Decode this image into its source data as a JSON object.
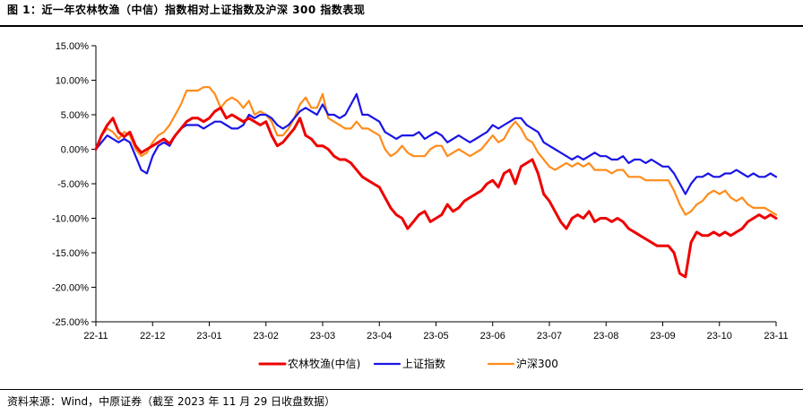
{
  "figure_title": "图 1：近一年农林牧渔（中信）指数相对上证指数及沪深 300 指数表现",
  "source_note": "资料来源：Wind，中原证券（截至 2023 年 11 月 29 日收盘数据）",
  "colors": {
    "agri": "#ee0000",
    "sse": "#1a14e6",
    "csi300": "#ff8c1a",
    "axis": "#000000"
  },
  "chart_data": {
    "type": "line",
    "title": "",
    "xlabel": "",
    "ylabel": "",
    "ylim": [
      -25,
      15
    ],
    "y_ticks": [
      15,
      10,
      5,
      0,
      -5,
      -10,
      -15,
      -20,
      -25
    ],
    "y_tick_labels": [
      "15.00%",
      "10.00%",
      "5.00%",
      "0.00%",
      "-5.00%",
      "-10.00%",
      "-15.00%",
      "-20.00%",
      "-25.00%"
    ],
    "x_ticks": [
      "22-11",
      "22-12",
      "23-01",
      "23-02",
      "23-03",
      "23-04",
      "23-05",
      "23-06",
      "23-07",
      "23-08",
      "23-09",
      "23-10",
      "23-11"
    ],
    "legend_position": "bottom",
    "series": [
      {
        "name": "农林牧渔(中信)",
        "color": "#ee0000",
        "x": [
          0,
          0.1,
          0.2,
          0.3,
          0.4,
          0.5,
          0.6,
          0.7,
          0.8,
          0.9,
          1.0,
          1.1,
          1.2,
          1.3,
          1.4,
          1.5,
          1.6,
          1.7,
          1.8,
          1.9,
          2.0,
          2.1,
          2.2,
          2.3,
          2.4,
          2.5,
          2.6,
          2.7,
          2.8,
          2.9,
          3.0,
          3.1,
          3.2,
          3.3,
          3.4,
          3.5,
          3.6,
          3.7,
          3.8,
          3.9,
          4.0,
          4.1,
          4.2,
          4.3,
          4.4,
          4.5,
          4.6,
          4.7,
          4.8,
          4.9,
          5.0,
          5.1,
          5.2,
          5.3,
          5.4,
          5.5,
          5.6,
          5.7,
          5.8,
          5.9,
          6.0,
          6.1,
          6.2,
          6.3,
          6.4,
          6.5,
          6.6,
          6.7,
          6.8,
          6.9,
          7.0,
          7.1,
          7.2,
          7.3,
          7.4,
          7.5,
          7.6,
          7.7,
          7.8,
          7.9,
          8.0,
          8.1,
          8.2,
          8.3,
          8.4,
          8.5,
          8.6,
          8.7,
          8.8,
          8.9,
          9.0,
          9.1,
          9.2,
          9.3,
          9.4,
          9.5,
          9.6,
          9.7,
          9.8,
          9.9,
          10.0,
          10.1,
          10.2,
          10.3,
          10.4,
          10.5,
          10.6,
          10.7,
          10.8,
          10.9,
          11.0,
          11.1,
          11.2,
          11.3,
          11.4,
          11.5,
          11.6,
          11.7,
          11.8,
          11.9,
          12.0
        ],
        "values": [
          0.0,
          2.0,
          3.5,
          4.5,
          2.5,
          1.8,
          2.5,
          0.5,
          -0.5,
          0.0,
          0.5,
          1.0,
          1.5,
          0.8,
          2.0,
          3.0,
          4.0,
          4.5,
          4.5,
          4.0,
          4.5,
          5.5,
          6.0,
          4.5,
          5.0,
          4.5,
          4.0,
          4.5,
          4.0,
          3.5,
          4.0,
          2.0,
          0.5,
          1.0,
          2.0,
          3.0,
          4.5,
          2.0,
          1.5,
          0.5,
          0.5,
          0.0,
          -1.0,
          -1.5,
          -1.5,
          -2.0,
          -3.0,
          -4.0,
          -4.5,
          -5.0,
          -5.5,
          -7.0,
          -8.5,
          -9.5,
          -10.0,
          -11.5,
          -10.5,
          -9.5,
          -9.0,
          -10.5,
          -10.0,
          -9.5,
          -8.0,
          -9.0,
          -8.5,
          -7.5,
          -7.0,
          -6.5,
          -6.0,
          -5.0,
          -4.5,
          -5.5,
          -3.5,
          -3.0,
          -5.0,
          -2.5,
          -2.0,
          -1.5,
          -3.5,
          -6.5,
          -7.5,
          -9.0,
          -10.5,
          -11.5,
          -10.0,
          -9.5,
          -10.0,
          -9.0,
          -10.5,
          -10.0,
          -10.0,
          -10.5,
          -10.0,
          -10.5,
          -11.5,
          -12.0,
          -12.5,
          -13.0,
          -13.5,
          -14.0,
          -14.0,
          -14.0,
          -15.0,
          -18.0,
          -18.5,
          -13.5,
          -12.0,
          -12.5,
          -12.5,
          -12.0,
          -12.5,
          -12.0,
          -12.5,
          -12.0,
          -11.5,
          -10.5,
          -10.0,
          -9.5,
          -10.0,
          -9.5,
          -10.0
        ]
      },
      {
        "name": "上证指数",
        "color": "#1a14e6",
        "x": [
          0,
          0.1,
          0.2,
          0.3,
          0.4,
          0.5,
          0.6,
          0.7,
          0.8,
          0.9,
          1.0,
          1.1,
          1.2,
          1.3,
          1.4,
          1.5,
          1.6,
          1.7,
          1.8,
          1.9,
          2.0,
          2.1,
          2.2,
          2.3,
          2.4,
          2.5,
          2.6,
          2.7,
          2.8,
          2.9,
          3.0,
          3.1,
          3.2,
          3.3,
          3.4,
          3.5,
          3.6,
          3.7,
          3.8,
          3.9,
          4.0,
          4.1,
          4.2,
          4.3,
          4.4,
          4.5,
          4.6,
          4.7,
          4.8,
          4.9,
          5.0,
          5.1,
          5.2,
          5.3,
          5.4,
          5.5,
          5.6,
          5.7,
          5.8,
          5.9,
          6.0,
          6.1,
          6.2,
          6.3,
          6.4,
          6.5,
          6.6,
          6.7,
          6.8,
          6.9,
          7.0,
          7.1,
          7.2,
          7.3,
          7.4,
          7.5,
          7.6,
          7.7,
          7.8,
          7.9,
          8.0,
          8.1,
          8.2,
          8.3,
          8.4,
          8.5,
          8.6,
          8.7,
          8.8,
          8.9,
          9.0,
          9.1,
          9.2,
          9.3,
          9.4,
          9.5,
          9.6,
          9.7,
          9.8,
          9.9,
          10.0,
          10.1,
          10.2,
          10.3,
          10.4,
          10.5,
          10.6,
          10.7,
          10.8,
          10.9,
          11.0,
          11.1,
          11.2,
          11.3,
          11.4,
          11.5,
          11.6,
          11.7,
          11.8,
          11.9,
          12.0
        ],
        "values": [
          0.0,
          1.0,
          2.0,
          1.5,
          1.0,
          1.5,
          1.0,
          -1.0,
          -3.0,
          -3.5,
          -1.0,
          0.5,
          1.0,
          0.5,
          2.0,
          3.0,
          3.5,
          3.5,
          3.5,
          3.0,
          3.5,
          4.0,
          4.0,
          3.5,
          3.0,
          3.0,
          3.5,
          5.0,
          4.5,
          5.0,
          5.0,
          4.5,
          3.5,
          3.0,
          3.5,
          4.5,
          5.5,
          6.0,
          5.5,
          5.0,
          6.5,
          5.0,
          5.0,
          4.5,
          5.0,
          6.5,
          8.0,
          5.0,
          5.0,
          4.5,
          4.0,
          2.5,
          2.0,
          1.5,
          2.0,
          2.0,
          2.0,
          2.5,
          1.5,
          2.0,
          2.5,
          2.0,
          1.0,
          1.5,
          2.0,
          1.5,
          1.0,
          1.5,
          2.0,
          2.5,
          3.5,
          3.0,
          3.5,
          4.0,
          4.5,
          4.5,
          3.5,
          3.0,
          2.5,
          1.0,
          0.5,
          0.0,
          -0.5,
          -1.0,
          -1.5,
          -1.0,
          -1.5,
          -1.0,
          -0.5,
          -1.0,
          -1.0,
          -1.5,
          -1.5,
          -1.0,
          -2.0,
          -1.5,
          -1.5,
          -2.0,
          -1.5,
          -2.0,
          -2.5,
          -2.5,
          -3.5,
          -5.0,
          -6.5,
          -5.0,
          -4.0,
          -4.0,
          -3.5,
          -4.0,
          -4.0,
          -3.5,
          -3.5,
          -3.0,
          -3.5,
          -4.0,
          -3.5,
          -4.0,
          -4.0,
          -3.5,
          -4.0
        ]
      },
      {
        "name": "沪深300",
        "color": "#ff8c1a",
        "x": [
          0,
          0.1,
          0.2,
          0.3,
          0.4,
          0.5,
          0.6,
          0.7,
          0.8,
          0.9,
          1.0,
          1.1,
          1.2,
          1.3,
          1.4,
          1.5,
          1.6,
          1.7,
          1.8,
          1.9,
          2.0,
          2.1,
          2.2,
          2.3,
          2.4,
          2.5,
          2.6,
          2.7,
          2.8,
          2.9,
          3.0,
          3.1,
          3.2,
          3.3,
          3.4,
          3.5,
          3.6,
          3.7,
          3.8,
          3.9,
          4.0,
          4.1,
          4.2,
          4.3,
          4.4,
          4.5,
          4.6,
          4.7,
          4.8,
          4.9,
          5.0,
          5.1,
          5.2,
          5.3,
          5.4,
          5.5,
          5.6,
          5.7,
          5.8,
          5.9,
          6.0,
          6.1,
          6.2,
          6.3,
          6.4,
          6.5,
          6.6,
          6.7,
          6.8,
          6.9,
          7.0,
          7.1,
          7.2,
          7.3,
          7.4,
          7.5,
          7.6,
          7.7,
          7.8,
          7.9,
          8.0,
          8.1,
          8.2,
          8.3,
          8.4,
          8.5,
          8.6,
          8.7,
          8.8,
          8.9,
          9.0,
          9.1,
          9.2,
          9.3,
          9.4,
          9.5,
          9.6,
          9.7,
          9.8,
          9.9,
          10.0,
          10.1,
          10.2,
          10.3,
          10.4,
          10.5,
          10.6,
          10.7,
          10.8,
          10.9,
          11.0,
          11.1,
          11.2,
          11.3,
          11.4,
          11.5,
          11.6,
          11.7,
          11.8,
          11.9,
          12.0
        ],
        "values": [
          0.0,
          2.0,
          3.0,
          2.5,
          1.5,
          2.5,
          2.0,
          0.0,
          -1.0,
          -0.5,
          1.0,
          2.0,
          2.5,
          3.5,
          5.0,
          6.5,
          8.5,
          8.5,
          8.5,
          9.0,
          9.0,
          8.0,
          6.0,
          7.0,
          7.5,
          7.0,
          6.0,
          7.0,
          5.0,
          5.5,
          5.0,
          4.0,
          2.0,
          2.0,
          3.0,
          4.5,
          6.5,
          7.5,
          6.0,
          6.0,
          8.0,
          4.5,
          4.0,
          3.5,
          3.0,
          3.0,
          4.0,
          3.0,
          3.0,
          2.5,
          2.0,
          0.0,
          -1.0,
          -0.5,
          0.5,
          -0.5,
          -1.0,
          -1.0,
          -1.0,
          0.0,
          0.5,
          0.5,
          -1.0,
          -0.5,
          0.0,
          -0.5,
          -1.0,
          -0.5,
          0.0,
          1.0,
          2.0,
          1.0,
          1.5,
          3.0,
          4.0,
          3.0,
          1.5,
          1.0,
          -0.5,
          -1.5,
          -2.5,
          -3.0,
          -2.5,
          -2.0,
          -2.5,
          -2.0,
          -2.5,
          -2.0,
          -3.0,
          -3.0,
          -3.0,
          -3.5,
          -3.0,
          -3.0,
          -4.0,
          -4.0,
          -4.0,
          -4.5,
          -4.5,
          -4.5,
          -4.5,
          -4.5,
          -6.0,
          -8.0,
          -9.5,
          -9.0,
          -8.0,
          -7.5,
          -6.5,
          -6.0,
          -6.5,
          -6.0,
          -7.0,
          -7.5,
          -7.0,
          -8.0,
          -8.5,
          -8.5,
          -8.5,
          -9.0,
          -9.5
        ]
      }
    ]
  }
}
